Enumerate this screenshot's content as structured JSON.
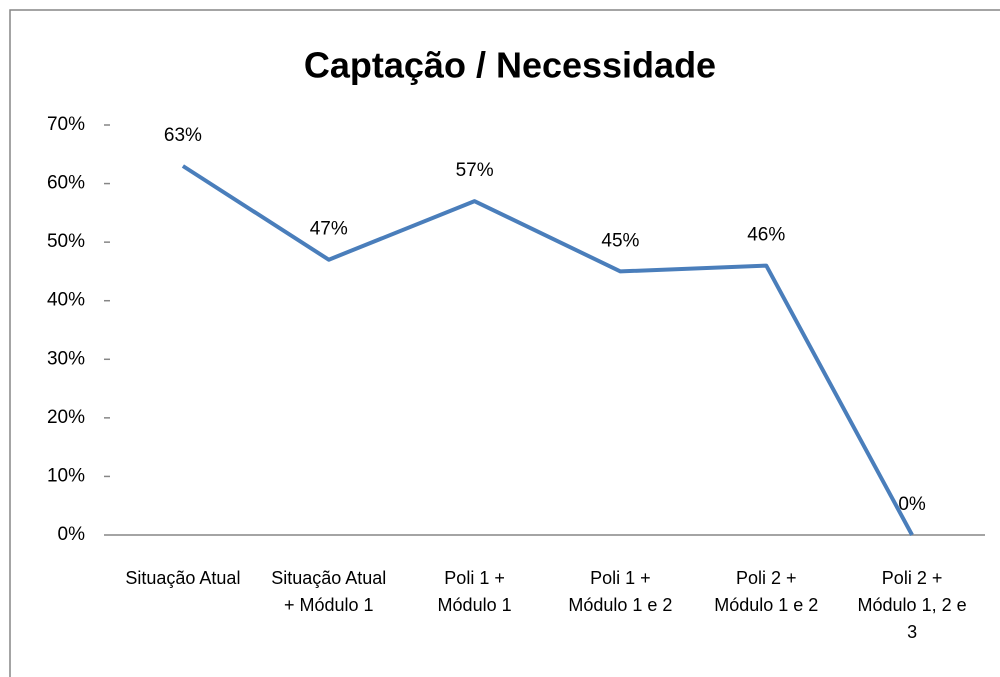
{
  "chart_data": {
    "type": "line",
    "title": "Captação / Necessidade",
    "categories": [
      "Situação Atual",
      "Situação Atual + Módulo 1",
      "Poli 1 + Módulo 1",
      "Poli 1 + Módulo 1 e 2",
      "Poli 2 + Módulo 1 e 2",
      "Poli 2 + Módulo 1, 2 e 3"
    ],
    "values": [
      63,
      47,
      57,
      45,
      46,
      0
    ],
    "value_labels": [
      "63%",
      "47%",
      "57%",
      "45%",
      "46%",
      "0%"
    ],
    "color": "#4a7ebb",
    "ylim": [
      0,
      70
    ],
    "yticks": [
      {
        "value": 0,
        "label": "0%"
      },
      {
        "value": 10,
        "label": "10%"
      },
      {
        "value": 20,
        "label": "20%"
      },
      {
        "value": 30,
        "label": "30%"
      },
      {
        "value": 40,
        "label": "40%"
      },
      {
        "value": 50,
        "label": "50%"
      },
      {
        "value": 60,
        "label": "60%"
      },
      {
        "value": 70,
        "label": "70%"
      }
    ],
    "grid": false
  }
}
